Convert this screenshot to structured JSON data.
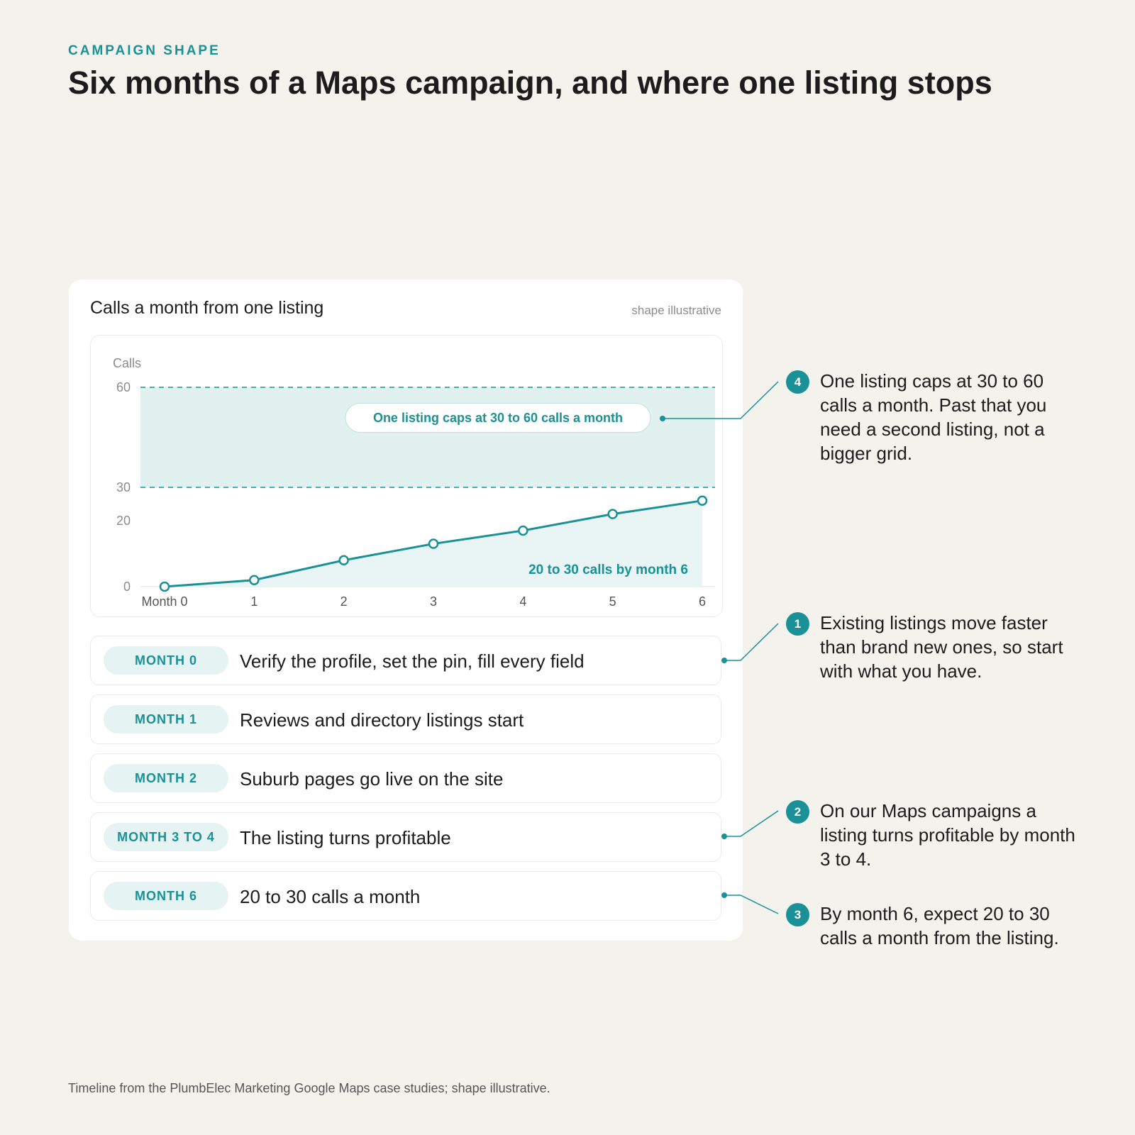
{
  "header": {
    "eyebrow": "CAMPAIGN SHAPE",
    "title": "Six months of a Maps campaign, and where one listing stops"
  },
  "card": {
    "title": "Calls a month from one listing",
    "note": "shape illustrative"
  },
  "chart_data": {
    "type": "line",
    "ylabel": "Calls",
    "x": [
      0,
      1,
      2,
      3,
      4,
      5,
      6
    ],
    "x_tick_labels": [
      "Month 0",
      "1",
      "2",
      "3",
      "4",
      "5",
      "6"
    ],
    "y_ticks": [
      0,
      20,
      30,
      60
    ],
    "ylim": [
      0,
      60
    ],
    "series": [
      {
        "values": [
          0,
          2,
          8,
          13,
          17,
          22,
          26
        ]
      }
    ],
    "band": {
      "from": 30,
      "to": 60,
      "label": "One listing caps at 30 to 60 calls a month"
    },
    "annotation": "20 to 30 calls by month 6",
    "colors": {
      "line": "#1a9196",
      "band": "#e0f1f0",
      "area": "#e8f5f4"
    }
  },
  "timeline": [
    {
      "label": "MONTH 0",
      "text": "Verify the profile, set the pin, fill every field"
    },
    {
      "label": "MONTH 1",
      "text": "Reviews and directory listings start"
    },
    {
      "label": "MONTH 2",
      "text": "Suburb pages go live on the site"
    },
    {
      "label": "MONTH 3 TO 4",
      "text": "The listing turns profitable"
    },
    {
      "label": "MONTH 6",
      "text": "20 to 30 calls a month"
    }
  ],
  "callouts": [
    {
      "badge": "4",
      "text": "One listing caps at 30 to 60 calls a month. Past that you need a second listing, not a bigger grid."
    },
    {
      "badge": "1",
      "text": "Existing listings move faster than brand new ones, so start with what you have."
    },
    {
      "badge": "2",
      "text": "On our Maps campaigns a listing turns profitable by month 3 to 4."
    },
    {
      "badge": "3",
      "text": "By month 6, expect 20 to 30 calls a month from the listing."
    }
  ],
  "footer": "Timeline from the PlumbElec Marketing Google Maps case studies; shape illustrative."
}
